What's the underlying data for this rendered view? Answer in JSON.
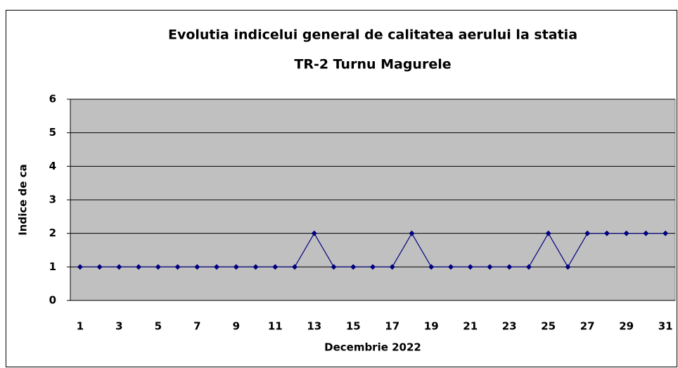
{
  "chart_data": {
    "type": "line",
    "title": [
      "Evolutia indicelui general de calitatea aerului la statia",
      "TR-2 Turnu Magurele"
    ],
    "xlabel": "Decembrie 2022",
    "ylabel": "Indice de ca",
    "categories": [
      "1",
      null,
      "3",
      null,
      "5",
      null,
      "7",
      null,
      "9",
      null,
      "11",
      null,
      "13",
      null,
      "15",
      null,
      "17",
      null,
      "19",
      null,
      "21",
      null,
      "23",
      null,
      "25",
      null,
      "27",
      null,
      "29",
      null,
      "31"
    ],
    "series": [
      {
        "name": "Indice de ca",
        "color": "#000080",
        "values": [
          1,
          1,
          1,
          1,
          1,
          1,
          1,
          1,
          1,
          1,
          1,
          1,
          2,
          1,
          1,
          1,
          1,
          2,
          1,
          1,
          1,
          1,
          1,
          1,
          2,
          1,
          2,
          2,
          2,
          2,
          2
        ]
      }
    ],
    "ylim": [
      0,
      6
    ],
    "yticks": [
      0,
      1,
      2,
      3,
      4,
      5,
      6
    ],
    "grid": true,
    "plot_background": "#c0c0c0"
  }
}
